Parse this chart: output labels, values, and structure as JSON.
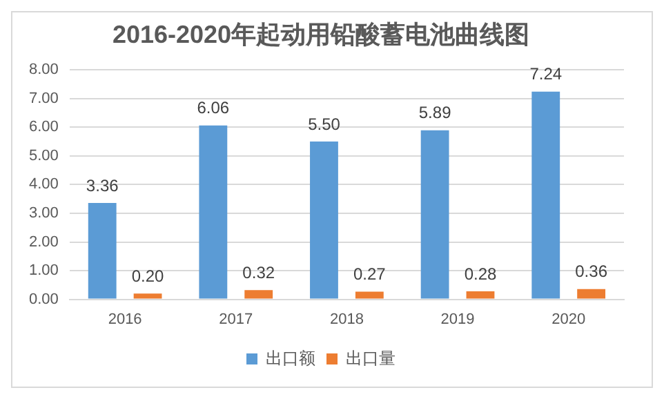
{
  "chart_data": {
    "type": "bar",
    "title": "2016-2020年起动用铅酸蓄电池曲线图",
    "categories": [
      "2016",
      "2017",
      "2018",
      "2019",
      "2020"
    ],
    "series": [
      {
        "name": "出口额",
        "color": "#5b9bd5",
        "values": [
          3.36,
          6.06,
          5.5,
          5.89,
          7.24
        ],
        "value_labels": [
          "3.36",
          "6.06",
          "5.50",
          "5.89",
          "7.24"
        ]
      },
      {
        "name": "出口量",
        "color": "#ed7d31",
        "values": [
          0.2,
          0.32,
          0.27,
          0.28,
          0.36
        ],
        "value_labels": [
          "0.20",
          "0.32",
          "0.27",
          "0.28",
          "0.36"
        ]
      }
    ],
    "ylim": [
      0,
      8
    ],
    "yticks": [
      {
        "value": 0,
        "label": "0.00"
      },
      {
        "value": 1,
        "label": "1.00"
      },
      {
        "value": 2,
        "label": "2.00"
      },
      {
        "value": 3,
        "label": "3.00"
      },
      {
        "value": 4,
        "label": "4.00"
      },
      {
        "value": 5,
        "label": "5.00"
      },
      {
        "value": 6,
        "label": "6.00"
      },
      {
        "value": 7,
        "label": "7.00"
      },
      {
        "value": 8,
        "label": "8.00"
      }
    ],
    "grid": "y",
    "legend": "bottom"
  }
}
